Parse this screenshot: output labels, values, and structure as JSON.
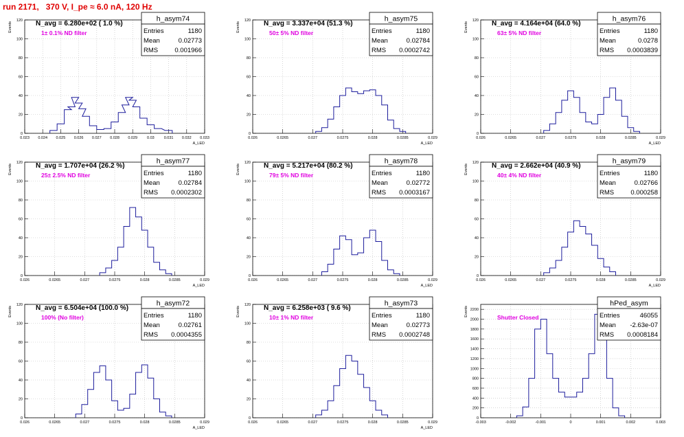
{
  "page": {
    "title": "run 2171,   370 V, I_pe ≈ 6.0 nA, 120 Hz"
  },
  "chart_data": [
    {
      "type": "histogram",
      "name": "h_asym74",
      "stats": {
        "Entries": "1180",
        "Mean": "0.02773",
        "RMS": "0.001966"
      },
      "navg": "N_avg = 6.280e+02 ( 1.0 %)",
      "label": "1± 0.1% ND filter",
      "ylabel": "Events",
      "xlabel": "A_LED",
      "xlim": [
        0.023,
        0.033
      ],
      "ylim": [
        0,
        120
      ],
      "xticks": [
        "0.023",
        "0.024",
        "0.025",
        "0.026",
        "0.027",
        "0.028",
        "0.029",
        "0.03",
        "0.031",
        "0.032",
        "0.033"
      ],
      "yticks": [
        "0",
        "20",
        "40",
        "60",
        "80",
        "100",
        "120"
      ],
      "bins": [
        [
          0.0246,
          3
        ],
        [
          0.025,
          10
        ],
        [
          0.0254,
          25
        ],
        [
          0.0256,
          28
        ],
        [
          0.0258,
          38
        ],
        [
          0.026,
          32
        ],
        [
          0.0262,
          26
        ],
        [
          0.0264,
          18
        ],
        [
          0.0268,
          8
        ],
        [
          0.0272,
          4
        ],
        [
          0.0276,
          5
        ],
        [
          0.028,
          12
        ],
        [
          0.0284,
          22
        ],
        [
          0.0286,
          30
        ],
        [
          0.0288,
          38
        ],
        [
          0.029,
          35
        ],
        [
          0.0292,
          28
        ],
        [
          0.0296,
          16
        ],
        [
          0.03,
          9
        ],
        [
          0.0304,
          5
        ],
        [
          0.031,
          3
        ]
      ]
    },
    {
      "type": "histogram",
      "name": "h_asym75",
      "stats": {
        "Entries": "1180",
        "Mean": "0.02784",
        "RMS": "0.0002742"
      },
      "navg": "N_avg = 3.337e+04 (51.3 %)",
      "label": "50± 5% ND filter",
      "ylabel": "Events",
      "xlabel": "A_LED",
      "xlim": [
        0.026,
        0.029
      ],
      "ylim": [
        0,
        120
      ],
      "xticks": [
        "0.026",
        "0.0265",
        "0.027",
        "0.0275",
        "0.028",
        "0.0285",
        "0.029"
      ],
      "yticks": [
        "0",
        "20",
        "40",
        "60",
        "80",
        "100",
        "120"
      ],
      "bins": [
        [
          0.0271,
          2
        ],
        [
          0.0272,
          6
        ],
        [
          0.0273,
          15
        ],
        [
          0.0274,
          28
        ],
        [
          0.0275,
          40
        ],
        [
          0.0276,
          48
        ],
        [
          0.0277,
          44
        ],
        [
          0.0278,
          42
        ],
        [
          0.0279,
          45
        ],
        [
          0.028,
          46
        ],
        [
          0.0281,
          40
        ],
        [
          0.0282,
          30
        ],
        [
          0.0283,
          14
        ],
        [
          0.0284,
          5
        ],
        [
          0.0285,
          2
        ]
      ]
    },
    {
      "type": "histogram",
      "name": "h_asym76",
      "stats": {
        "Entries": "1180",
        "Mean": "0.0278",
        "RMS": "0.0003839"
      },
      "navg": "N_avg = 4.164e+04 (64.0 %)",
      "label": "63± 5% ND filter",
      "ylabel": "Events",
      "xlabel": "A_LED",
      "xlim": [
        0.026,
        0.029
      ],
      "ylim": [
        0,
        120
      ],
      "xticks": [
        "0.026",
        "0.0265",
        "0.027",
        "0.0275",
        "0.028",
        "0.0285",
        "0.029"
      ],
      "yticks": [
        "0",
        "20",
        "40",
        "60",
        "80",
        "100",
        "120"
      ],
      "bins": [
        [
          0.0271,
          3
        ],
        [
          0.0272,
          10
        ],
        [
          0.0273,
          22
        ],
        [
          0.0274,
          35
        ],
        [
          0.0275,
          45
        ],
        [
          0.0276,
          38
        ],
        [
          0.0277,
          22
        ],
        [
          0.0278,
          12
        ],
        [
          0.0279,
          10
        ],
        [
          0.028,
          20
        ],
        [
          0.0281,
          38
        ],
        [
          0.0282,
          48
        ],
        [
          0.0283,
          35
        ],
        [
          0.0284,
          18
        ],
        [
          0.0285,
          6
        ],
        [
          0.0286,
          2
        ]
      ]
    },
    {
      "type": "histogram",
      "name": "h_asym77",
      "stats": {
        "Entries": "1180",
        "Mean": "0.02784",
        "RMS": "0.0002302"
      },
      "navg": "N_avg = 1.707e+04 (26.2 %)",
      "label": "25± 2.5% ND filter",
      "ylabel": "Events",
      "xlabel": "A_LED",
      "xlim": [
        0.026,
        0.029
      ],
      "ylim": [
        0,
        120
      ],
      "xticks": [
        "0.026",
        "0.0265",
        "0.027",
        "0.0275",
        "0.028",
        "0.0285",
        "0.029"
      ],
      "yticks": [
        "0",
        "20",
        "40",
        "60",
        "80",
        "100",
        "120"
      ],
      "bins": [
        [
          0.0273,
          3
        ],
        [
          0.0274,
          8
        ],
        [
          0.0275,
          16
        ],
        [
          0.0276,
          30
        ],
        [
          0.0277,
          52
        ],
        [
          0.0278,
          72
        ],
        [
          0.0279,
          62
        ],
        [
          0.028,
          48
        ],
        [
          0.0281,
          30
        ],
        [
          0.0282,
          14
        ],
        [
          0.0283,
          6
        ],
        [
          0.0284,
          2
        ]
      ]
    },
    {
      "type": "histogram",
      "name": "h_asym78",
      "stats": {
        "Entries": "1180",
        "Mean": "0.02772",
        "RMS": "0.0003167"
      },
      "navg": "N_avg = 5.217e+04 (80.2 %)",
      "label": "79± 5% ND filter",
      "ylabel": "Events",
      "xlabel": "A_LED",
      "xlim": [
        0.026,
        0.029
      ],
      "ylim": [
        0,
        120
      ],
      "xticks": [
        "0.026",
        "0.0265",
        "0.027",
        "0.0275",
        "0.028",
        "0.0285",
        "0.029"
      ],
      "yticks": [
        "0",
        "20",
        "40",
        "60",
        "80",
        "100",
        "120"
      ],
      "bins": [
        [
          0.0272,
          4
        ],
        [
          0.0273,
          12
        ],
        [
          0.0274,
          28
        ],
        [
          0.0275,
          42
        ],
        [
          0.0276,
          38
        ],
        [
          0.0277,
          22
        ],
        [
          0.0278,
          24
        ],
        [
          0.0279,
          40
        ],
        [
          0.028,
          48
        ],
        [
          0.0281,
          36
        ],
        [
          0.0282,
          16
        ],
        [
          0.0283,
          6
        ],
        [
          0.0284,
          2
        ]
      ]
    },
    {
      "type": "histogram",
      "name": "h_asym79",
      "stats": {
        "Entries": "1180",
        "Mean": "0.02766",
        "RMS": "0.000258"
      },
      "navg": "N_avg = 2.662e+04 (40.9 %)",
      "label": "40± 4% ND filter",
      "ylabel": "Events",
      "xlabel": "A_LED",
      "xlim": [
        0.026,
        0.029
      ],
      "ylim": [
        0,
        120
      ],
      "xticks": [
        "0.026",
        "0.0265",
        "0.027",
        "0.0275",
        "0.028",
        "0.0285",
        "0.029"
      ],
      "yticks": [
        "0",
        "20",
        "40",
        "60",
        "80",
        "100",
        "120"
      ],
      "bins": [
        [
          0.0271,
          3
        ],
        [
          0.0272,
          8
        ],
        [
          0.0273,
          16
        ],
        [
          0.0274,
          30
        ],
        [
          0.0275,
          46
        ],
        [
          0.0276,
          58
        ],
        [
          0.0277,
          52
        ],
        [
          0.0278,
          44
        ],
        [
          0.0279,
          32
        ],
        [
          0.028,
          18
        ],
        [
          0.0281,
          9
        ],
        [
          0.0282,
          4
        ]
      ]
    },
    {
      "type": "histogram",
      "name": "h_asym72",
      "stats": {
        "Entries": "1180",
        "Mean": "0.02761",
        "RMS": "0.0004355"
      },
      "navg": "N_avg = 6.504e+04 (100.0 %)",
      "label": "100% (No filter)",
      "ylabel": "Events",
      "xlabel": "A_LED",
      "xlim": [
        0.026,
        0.029
      ],
      "ylim": [
        0,
        120
      ],
      "xticks": [
        "0.026",
        "0.0265",
        "0.027",
        "0.0275",
        "0.028",
        "0.0285",
        "0.029"
      ],
      "yticks": [
        "0",
        "20",
        "40",
        "60",
        "80",
        "100",
        "120"
      ],
      "bins": [
        [
          0.0269,
          4
        ],
        [
          0.027,
          14
        ],
        [
          0.0271,
          30
        ],
        [
          0.0272,
          48
        ],
        [
          0.0273,
          55
        ],
        [
          0.0274,
          40
        ],
        [
          0.0275,
          18
        ],
        [
          0.0276,
          8
        ],
        [
          0.0277,
          10
        ],
        [
          0.0278,
          25
        ],
        [
          0.0279,
          48
        ],
        [
          0.028,
          56
        ],
        [
          0.0281,
          42
        ],
        [
          0.0282,
          20
        ],
        [
          0.0283,
          6
        ],
        [
          0.0284,
          2
        ]
      ]
    },
    {
      "type": "histogram",
      "name": "h_asym73",
      "stats": {
        "Entries": "1180",
        "Mean": "0.02773",
        "RMS": "0.0002748"
      },
      "navg": "N_avg = 6.258e+03 ( 9.6 %)",
      "label": "10± 1% ND filter",
      "ylabel": "Events",
      "xlabel": "A_LED",
      "xlim": [
        0.026,
        0.029
      ],
      "ylim": [
        0,
        120
      ],
      "xticks": [
        "0.026",
        "0.0265",
        "0.027",
        "0.0275",
        "0.028",
        "0.0285",
        "0.029"
      ],
      "yticks": [
        "0",
        "20",
        "40",
        "60",
        "80",
        "100",
        "120"
      ],
      "bins": [
        [
          0.0271,
          3
        ],
        [
          0.0272,
          8
        ],
        [
          0.0273,
          18
        ],
        [
          0.0274,
          34
        ],
        [
          0.0275,
          52
        ],
        [
          0.0276,
          66
        ],
        [
          0.0277,
          60
        ],
        [
          0.0278,
          46
        ],
        [
          0.0279,
          32
        ],
        [
          0.028,
          18
        ],
        [
          0.0281,
          8
        ],
        [
          0.0282,
          3
        ]
      ]
    },
    {
      "type": "histogram",
      "name": "hPed_asym",
      "stats": {
        "Entries": "46055",
        "Mean": "-2.63e-07",
        "RMS": "0.0008184"
      },
      "navg": "",
      "label": "Shutter Closed",
      "ylabel": "Events",
      "xlabel": "",
      "xlim": [
        -0.003,
        0.003
      ],
      "ylim": [
        0,
        2300
      ],
      "xticks": [
        "-0.003",
        "-0.002",
        "-0.001",
        "0",
        "0.001",
        "0.002",
        "0.003"
      ],
      "yticks": [
        "0",
        "200",
        "400",
        "600",
        "800",
        "1000",
        "1200",
        "1400",
        "1600",
        "1800",
        "2000",
        "2200"
      ],
      "bins": [
        [
          -0.0017,
          40
        ],
        [
          -0.0015,
          220
        ],
        [
          -0.0013,
          800
        ],
        [
          -0.0011,
          1800
        ],
        [
          -0.0009,
          2000
        ],
        [
          -0.0007,
          1300
        ],
        [
          -0.0005,
          800
        ],
        [
          -0.0003,
          520
        ],
        [
          -0.0001,
          420
        ],
        [
          0.0001,
          420
        ],
        [
          0.0003,
          520
        ],
        [
          0.0005,
          800
        ],
        [
          0.0007,
          1300
        ],
        [
          0.0009,
          2100
        ],
        [
          0.0011,
          1800
        ],
        [
          0.0013,
          800
        ],
        [
          0.0015,
          200
        ],
        [
          0.0017,
          40
        ]
      ]
    }
  ]
}
